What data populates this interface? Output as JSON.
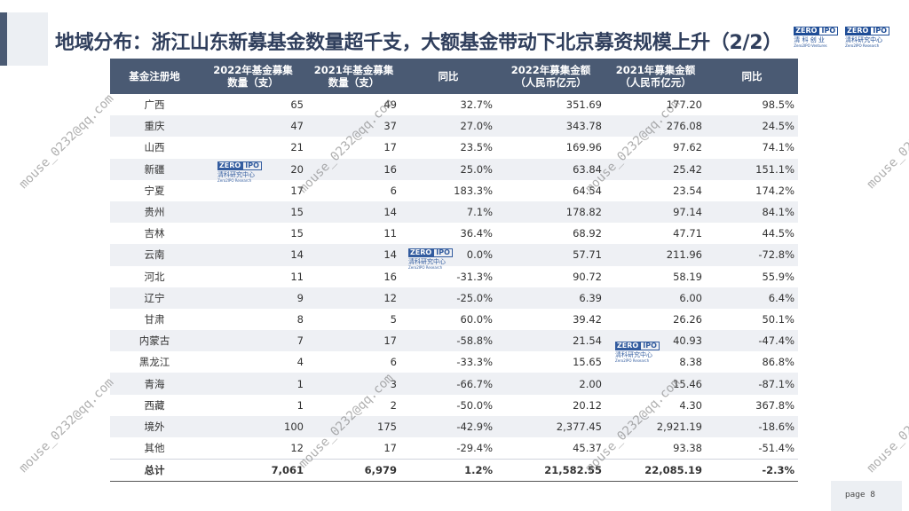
{
  "header": {
    "title": "地域分布：浙江山东新募基金数量超千支，大额基金带动下北京募资规模上升（2/2）"
  },
  "logos": [
    {
      "mark_left": "ZERO",
      "mark_right": "IPO",
      "cn": "清 科 创 业",
      "en": "Zero2IPO Ventures"
    },
    {
      "mark_left": "ZERO",
      "mark_right": "IPO",
      "cn": "清科研究中心",
      "en": "Zero2IPO Research"
    }
  ],
  "table": {
    "headers": [
      "基金注册地",
      "2022年基金募集\n数量（支）",
      "2021年基金募集\n数量（支）",
      "同比",
      "2022年募集金额\n（人民币亿元）",
      "2021年募集金额\n（人民币亿元）",
      "同比"
    ],
    "rows": [
      [
        "广西",
        "65",
        "49",
        "32.7%",
        "351.69",
        "177.20",
        "98.5%"
      ],
      [
        "重庆",
        "47",
        "37",
        "27.0%",
        "343.78",
        "276.08",
        "24.5%"
      ],
      [
        "山西",
        "21",
        "17",
        "23.5%",
        "169.96",
        "97.62",
        "74.1%"
      ],
      [
        "新疆",
        "20",
        "16",
        "25.0%",
        "63.84",
        "25.42",
        "151.1%"
      ],
      [
        "宁夏",
        "17",
        "6",
        "183.3%",
        "64.54",
        "23.54",
        "174.2%"
      ],
      [
        "贵州",
        "15",
        "14",
        "7.1%",
        "178.82",
        "97.14",
        "84.1%"
      ],
      [
        "吉林",
        "15",
        "11",
        "36.4%",
        "68.92",
        "47.71",
        "44.5%"
      ],
      [
        "云南",
        "14",
        "14",
        "0.0%",
        "57.71",
        "211.96",
        "-72.8%"
      ],
      [
        "河北",
        "11",
        "16",
        "-31.3%",
        "90.72",
        "58.19",
        "55.9%"
      ],
      [
        "辽宁",
        "9",
        "12",
        "-25.0%",
        "6.39",
        "6.00",
        "6.4%"
      ],
      [
        "甘肃",
        "8",
        "5",
        "60.0%",
        "39.42",
        "26.26",
        "50.1%"
      ],
      [
        "内蒙古",
        "7",
        "17",
        "-58.8%",
        "21.54",
        "40.93",
        "-47.4%"
      ],
      [
        "黑龙江",
        "4",
        "6",
        "-33.3%",
        "15.65",
        "8.38",
        "86.8%"
      ],
      [
        "青海",
        "1",
        "3",
        "-66.7%",
        "2.00",
        "15.46",
        "-87.1%"
      ],
      [
        "西藏",
        "1",
        "2",
        "-50.0%",
        "20.12",
        "4.30",
        "367.8%"
      ],
      [
        "境外",
        "100",
        "175",
        "-42.9%",
        "2,377.45",
        "2,921.19",
        "-18.6%"
      ],
      [
        "其他",
        "12",
        "17",
        "-29.4%",
        "45.37",
        "93.38",
        "-51.4%"
      ]
    ],
    "total": [
      "总计",
      "7,061",
      "6,979",
      "1.2%",
      "21,582.55",
      "22,085.19",
      "-2.3%"
    ]
  },
  "watermark": "mouse_0232@qq.com",
  "watermark_logo": {
    "mark_left": "ZERO",
    "mark_right": "IPO",
    "cn": "清科研究中心",
    "en": "Zero2IPO Research"
  },
  "footer": {
    "page_label": "page",
    "page_number": "8"
  },
  "colors": {
    "header_bg": "#4a5a73",
    "stripe": "#eef0f4",
    "accent": "#4fc3c7",
    "title": "#2f3e5c"
  }
}
